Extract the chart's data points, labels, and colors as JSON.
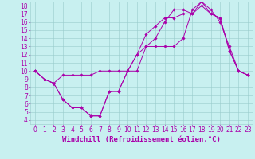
{
  "xlabel": "Windchill (Refroidissement éolien,°C)",
  "background_color": "#c8f0f0",
  "line_color": "#aa00aa",
  "xlim": [
    -0.5,
    23.5
  ],
  "ylim": [
    3.5,
    18.5
  ],
  "xticks": [
    0,
    1,
    2,
    3,
    4,
    5,
    6,
    7,
    8,
    9,
    10,
    11,
    12,
    13,
    14,
    15,
    16,
    17,
    18,
    19,
    20,
    21,
    22,
    23
  ],
  "yticks": [
    4,
    5,
    6,
    7,
    8,
    9,
    10,
    11,
    12,
    13,
    14,
    15,
    16,
    17,
    18
  ],
  "line1_x": [
    0,
    1,
    2,
    3,
    4,
    5,
    6,
    7,
    8,
    9,
    10,
    11,
    12,
    13,
    14,
    15,
    16,
    17,
    18,
    19,
    20,
    21,
    22,
    23
  ],
  "line1_y": [
    10,
    9,
    8.5,
    6.5,
    5.5,
    5.5,
    4.5,
    4.5,
    7.5,
    7.5,
    10,
    10,
    13,
    13,
    13,
    13,
    14,
    17.5,
    18.5,
    17,
    16.5,
    12.5,
    10,
    9.5
  ],
  "line2_x": [
    0,
    1,
    2,
    3,
    4,
    5,
    6,
    7,
    8,
    9,
    10,
    11,
    12,
    13,
    14,
    15,
    16,
    17,
    18,
    19,
    20,
    21,
    22,
    23
  ],
  "line2_y": [
    10,
    9,
    8.5,
    9.5,
    9.5,
    9.5,
    9.5,
    10,
    10,
    10,
    10,
    12,
    14.5,
    15.5,
    16.5,
    16.5,
    17,
    17,
    18,
    17,
    16.5,
    12.5,
    10,
    9.5
  ],
  "line3_x": [
    0,
    1,
    2,
    3,
    4,
    5,
    6,
    7,
    8,
    9,
    10,
    11,
    12,
    13,
    14,
    15,
    16,
    17,
    18,
    19,
    20,
    21,
    22,
    23
  ],
  "line3_y": [
    10,
    9,
    8.5,
    6.5,
    5.5,
    5.5,
    4.5,
    4.5,
    7.5,
    7.5,
    10,
    12,
    13,
    14,
    16,
    17.5,
    17.5,
    17,
    18.5,
    17.5,
    16,
    13,
    10,
    9.5
  ],
  "grid_color": "#99cccc",
  "tick_fontsize": 5.5,
  "xlabel_fontsize": 6.5,
  "marker": "D",
  "marker_size": 1.8,
  "linewidth": 0.7
}
